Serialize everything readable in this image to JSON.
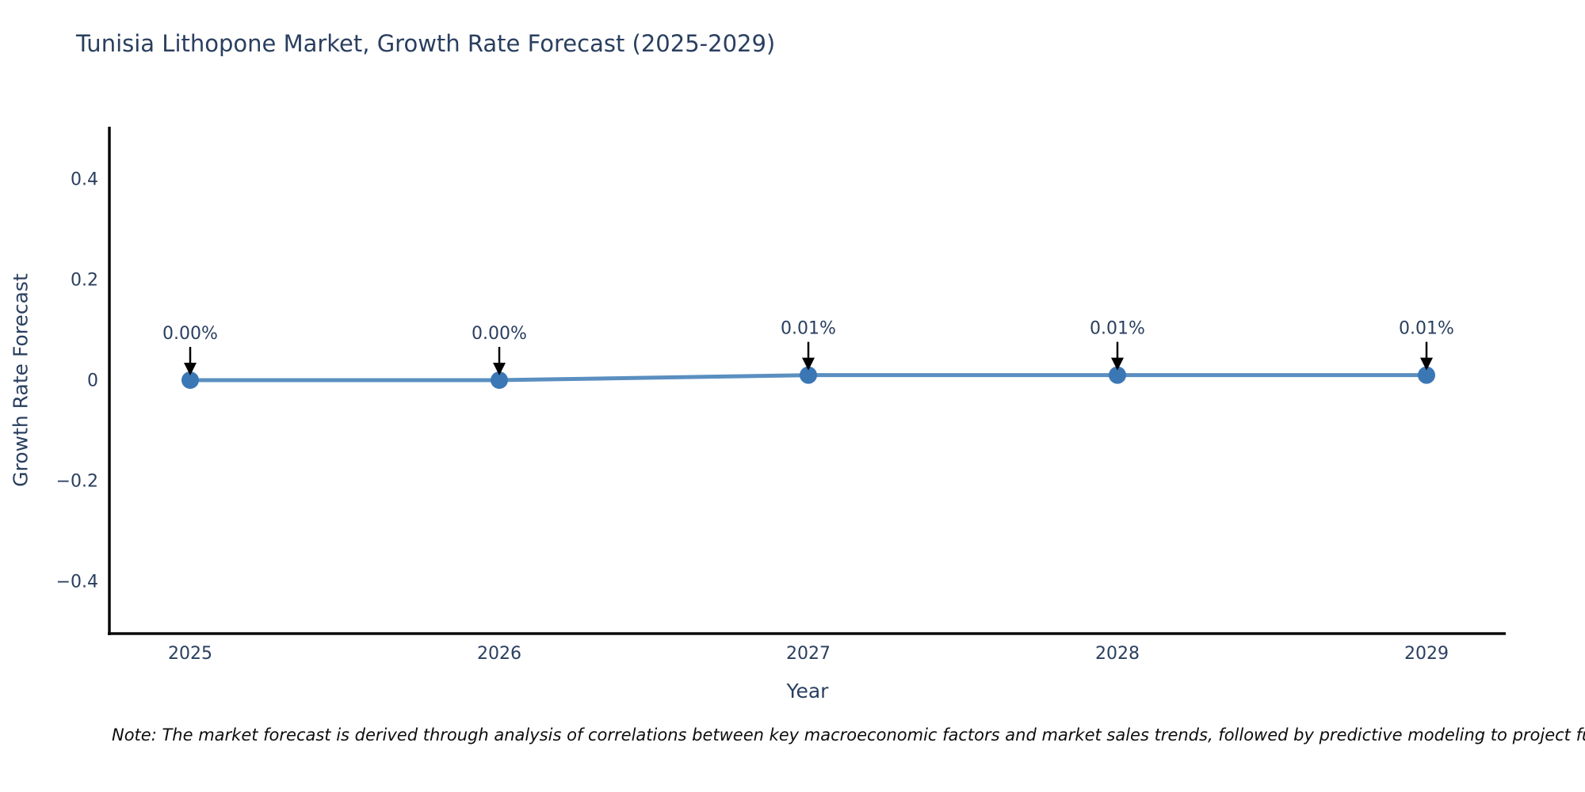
{
  "title": "Tunisia Lithopone Market, Growth Rate Forecast (2025-2029)",
  "note": "Note: The market forecast is derived through analysis of correlations between key macroeconomic factors and market sales trends, followed by predictive modeling to project future sales.",
  "colors": {
    "title_text": "#2a3f5f",
    "axis_line": "#0a0a0a",
    "tick_text": "#2a3f5f",
    "series_line": "#5a8fc0",
    "series_marker": "#3b77b5",
    "annotation_arrow": "#000000",
    "annotation_text": "#2a3f5f",
    "background": "#ffffff"
  },
  "chart_data": {
    "type": "line",
    "title": "Tunisia Lithopone Market, Growth Rate Forecast (2025-2029)",
    "xlabel": "Year",
    "ylabel": "Growth Rate Forecast",
    "categories": [
      "2025",
      "2026",
      "2027",
      "2028",
      "2029"
    ],
    "values": [
      0.0,
      0.0,
      0.01,
      0.01,
      0.01
    ],
    "point_labels": [
      "0.00%",
      "0.00%",
      "0.01%",
      "0.01%",
      "0.01%"
    ],
    "yticks": [
      0.4,
      0.2,
      0,
      -0.2,
      -0.4
    ],
    "ytick_labels": [
      "0.4",
      "0.2",
      "0",
      "−0.2",
      "−0.4"
    ],
    "ylim": [
      -0.504,
      0.504
    ],
    "grid": false,
    "legend": "none",
    "annotation_style": "down-arrow-to-point"
  }
}
